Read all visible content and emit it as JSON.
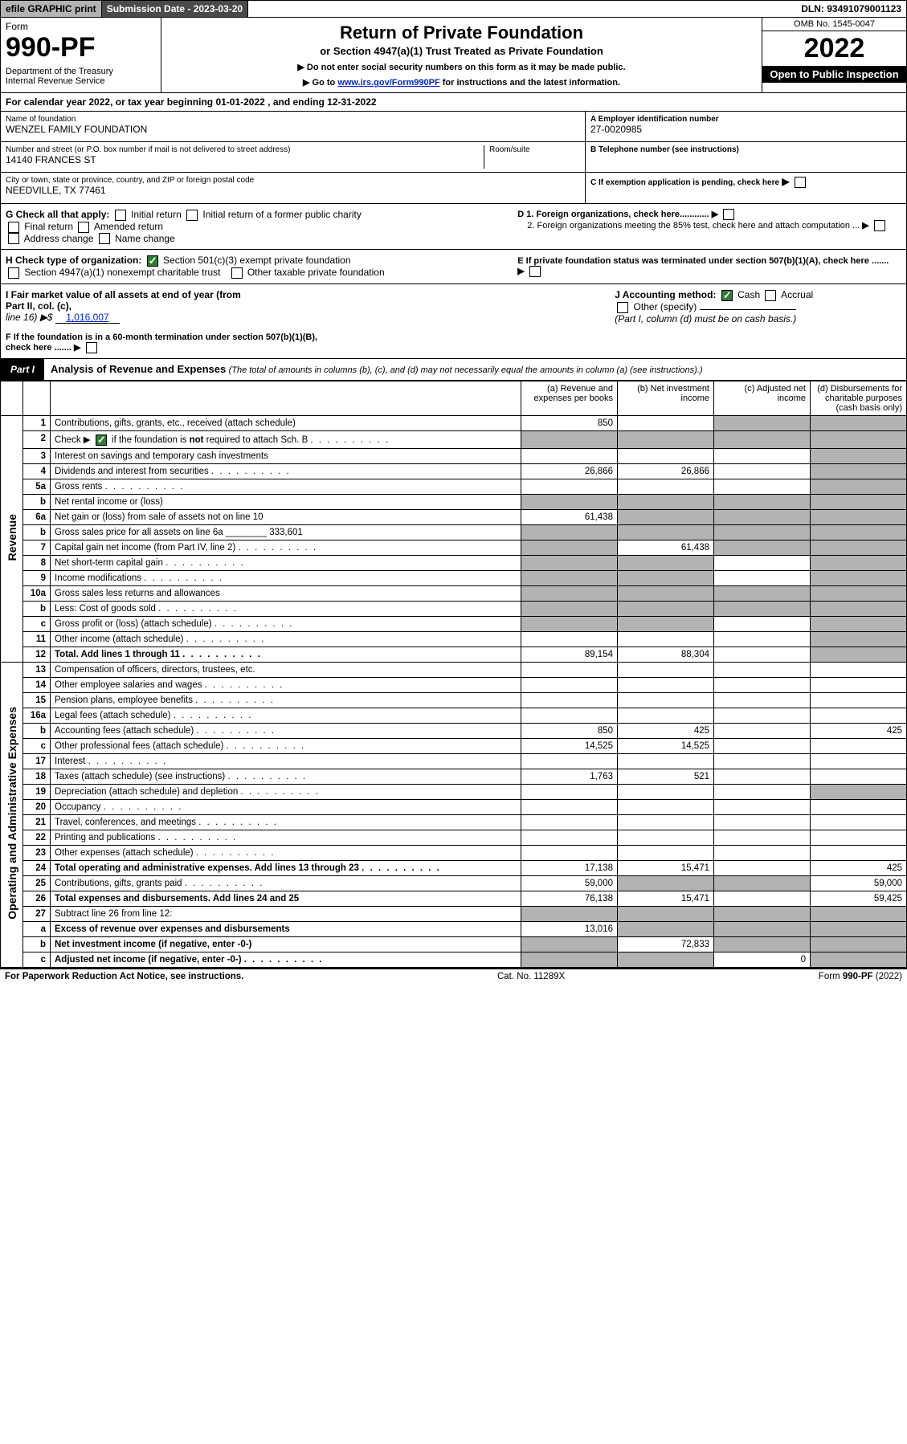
{
  "topbar": {
    "efile": "efile GRAPHIC print",
    "submission": "Submission Date - 2023-03-20",
    "dln": "DLN: 93491079001123"
  },
  "header": {
    "form_label": "Form",
    "form_no": "990-PF",
    "dept": "Department of the Treasury\nInternal Revenue Service",
    "title": "Return of Private Foundation",
    "subtitle": "or Section 4947(a)(1) Trust Treated as Private Foundation",
    "note1": "▶ Do not enter social security numbers on this form as it may be made public.",
    "note2_pre": "▶ Go to ",
    "note2_link": "www.irs.gov/Form990PF",
    "note2_post": " for instructions and the latest information.",
    "omb": "OMB No. 1545-0047",
    "year": "2022",
    "open": "Open to Public Inspection"
  },
  "calyear": "For calendar year 2022, or tax year beginning 01-01-2022           , and ending 12-31-2022",
  "info": {
    "name_lbl": "Name of foundation",
    "name": "WENZEL FAMILY FOUNDATION",
    "addr_lbl": "Number and street (or P.O. box number if mail is not delivered to street address)",
    "addr": "14140 FRANCES ST",
    "room_lbl": "Room/suite",
    "city_lbl": "City or town, state or province, country, and ZIP or foreign postal code",
    "city": "NEEDVILLE, TX  77461",
    "ein_lbl": "A Employer identification number",
    "ein": "27-0020985",
    "tel_lbl": "B Telephone number (see instructions)",
    "c": "C If exemption application is pending, check here",
    "d1": "D 1. Foreign organizations, check here............",
    "d2": "2. Foreign organizations meeting the 85% test, check here and attach computation ...",
    "e": "E If private foundation status was terminated under section 507(b)(1)(A), check here .......",
    "f": "F  If the foundation is in a 60-month termination under section 507(b)(1)(B), check here .......",
    "g_label": "G Check all that apply:",
    "g_opts": [
      "Initial return",
      "Initial return of a former public charity",
      "Final return",
      "Amended return",
      "Address change",
      "Name change"
    ],
    "h_label": "H Check type of organization:",
    "h1": "Section 501(c)(3) exempt private foundation",
    "h2": "Section 4947(a)(1) nonexempt charitable trust",
    "h3": "Other taxable private foundation",
    "i_label": "I Fair market value of all assets at end of year (from Part II, col. (c),",
    "i_line": "line 16) ▶$",
    "i_val": "1,016,007",
    "j_label": "J Accounting method:",
    "j1": "Cash",
    "j2": "Accrual",
    "j3": "Other (specify)",
    "j_note": "(Part I, column (d) must be on cash basis.)"
  },
  "part1": {
    "badge": "Part I",
    "title": "Analysis of Revenue and Expenses",
    "title_note": "(The total of amounts in columns (b), (c), and (d) may not necessarily equal the amounts in column (a) (see instructions).)",
    "col_a": "(a)   Revenue and expenses per books",
    "col_b": "(b)   Net investment income",
    "col_c": "(c)   Adjusted net income",
    "col_d": "(d)   Disbursements for charitable purposes (cash basis only)"
  },
  "sections": {
    "revenue": "Revenue",
    "opex": "Operating and Administrative Expenses"
  },
  "rows": [
    {
      "n": "1",
      "d": "Contributions, gifts, grants, etc., received (attach schedule)",
      "a": "850",
      "b": "",
      "c": "g",
      "dd": "g"
    },
    {
      "n": "2",
      "d": "Check ▶ ☑ if the foundation is not required to attach Sch. B",
      "dots": true,
      "a": "g",
      "b": "g",
      "c": "g",
      "dd": "g"
    },
    {
      "n": "3",
      "d": "Interest on savings and temporary cash investments",
      "a": "",
      "b": "",
      "c": "",
      "dd": "g"
    },
    {
      "n": "4",
      "d": "Dividends and interest from securities",
      "dots": true,
      "a": "26,866",
      "b": "26,866",
      "c": "",
      "dd": "g"
    },
    {
      "n": "5a",
      "d": "Gross rents",
      "dots": true,
      "a": "",
      "b": "",
      "c": "",
      "dd": "g"
    },
    {
      "n": "b",
      "d": "Net rental income or (loss)",
      "a": "g",
      "b": "g",
      "c": "g",
      "dd": "g"
    },
    {
      "n": "6a",
      "d": "Net gain or (loss) from sale of assets not on line 10",
      "a": "61,438",
      "b": "g",
      "c": "g",
      "dd": "g"
    },
    {
      "n": "b",
      "d": "Gross sales price for all assets on line 6a ________ 333,601",
      "a": "g",
      "b": "g",
      "c": "g",
      "dd": "g"
    },
    {
      "n": "7",
      "d": "Capital gain net income (from Part IV, line 2)",
      "dots": true,
      "a": "g",
      "b": "61,438",
      "c": "g",
      "dd": "g"
    },
    {
      "n": "8",
      "d": "Net short-term capital gain",
      "dots": true,
      "a": "g",
      "b": "g",
      "c": "",
      "dd": "g"
    },
    {
      "n": "9",
      "d": "Income modifications",
      "dots": true,
      "a": "g",
      "b": "g",
      "c": "",
      "dd": "g"
    },
    {
      "n": "10a",
      "d": "Gross sales less returns and allowances",
      "a": "g",
      "b": "g",
      "c": "g",
      "dd": "g"
    },
    {
      "n": "b",
      "d": "Less: Cost of goods sold",
      "dots": true,
      "a": "g",
      "b": "g",
      "c": "g",
      "dd": "g"
    },
    {
      "n": "c",
      "d": "Gross profit or (loss) (attach schedule)",
      "dots": true,
      "a": "g",
      "b": "g",
      "c": "",
      "dd": "g"
    },
    {
      "n": "11",
      "d": "Other income (attach schedule)",
      "dots": true,
      "a": "",
      "b": "",
      "c": "",
      "dd": "g"
    },
    {
      "n": "12",
      "d": "Total. Add lines 1 through 11",
      "dots": true,
      "bold": true,
      "a": "89,154",
      "b": "88,304",
      "c": "",
      "dd": "g"
    },
    {
      "n": "13",
      "d": "Compensation of officers, directors, trustees, etc.",
      "a": "",
      "b": "",
      "c": "",
      "dd": ""
    },
    {
      "n": "14",
      "d": "Other employee salaries and wages",
      "dots": true,
      "a": "",
      "b": "",
      "c": "",
      "dd": ""
    },
    {
      "n": "15",
      "d": "Pension plans, employee benefits",
      "dots": true,
      "a": "",
      "b": "",
      "c": "",
      "dd": ""
    },
    {
      "n": "16a",
      "d": "Legal fees (attach schedule)",
      "dots": true,
      "a": "",
      "b": "",
      "c": "",
      "dd": ""
    },
    {
      "n": "b",
      "d": "Accounting fees (attach schedule)",
      "dots": true,
      "a": "850",
      "b": "425",
      "c": "",
      "dd": "425"
    },
    {
      "n": "c",
      "d": "Other professional fees (attach schedule)",
      "dots": true,
      "a": "14,525",
      "b": "14,525",
      "c": "",
      "dd": ""
    },
    {
      "n": "17",
      "d": "Interest",
      "dots": true,
      "a": "",
      "b": "",
      "c": "",
      "dd": ""
    },
    {
      "n": "18",
      "d": "Taxes (attach schedule) (see instructions)",
      "dots": true,
      "a": "1,763",
      "b": "521",
      "c": "",
      "dd": ""
    },
    {
      "n": "19",
      "d": "Depreciation (attach schedule) and depletion",
      "dots": true,
      "a": "",
      "b": "",
      "c": "",
      "dd": "g"
    },
    {
      "n": "20",
      "d": "Occupancy",
      "dots": true,
      "a": "",
      "b": "",
      "c": "",
      "dd": ""
    },
    {
      "n": "21",
      "d": "Travel, conferences, and meetings",
      "dots": true,
      "a": "",
      "b": "",
      "c": "",
      "dd": ""
    },
    {
      "n": "22",
      "d": "Printing and publications",
      "dots": true,
      "a": "",
      "b": "",
      "c": "",
      "dd": ""
    },
    {
      "n": "23",
      "d": "Other expenses (attach schedule)",
      "dots": true,
      "a": "",
      "b": "",
      "c": "",
      "dd": ""
    },
    {
      "n": "24",
      "d": "Total operating and administrative expenses. Add lines 13 through 23",
      "dots": true,
      "bold": true,
      "a": "17,138",
      "b": "15,471",
      "c": "",
      "dd": "425"
    },
    {
      "n": "25",
      "d": "Contributions, gifts, grants paid",
      "dots": true,
      "a": "59,000",
      "b": "g",
      "c": "g",
      "dd": "59,000"
    },
    {
      "n": "26",
      "d": "Total expenses and disbursements. Add lines 24 and 25",
      "bold": true,
      "a": "76,138",
      "b": "15,471",
      "c": "",
      "dd": "59,425"
    },
    {
      "n": "27",
      "d": "Subtract line 26 from line 12:",
      "a": "g",
      "b": "g",
      "c": "g",
      "dd": "g"
    },
    {
      "n": "a",
      "d": "Excess of revenue over expenses and disbursements",
      "bold": true,
      "a": "13,016",
      "b": "g",
      "c": "g",
      "dd": "g"
    },
    {
      "n": "b",
      "d": "Net investment income (if negative, enter -0-)",
      "bold": true,
      "a": "g",
      "b": "72,833",
      "c": "g",
      "dd": "g"
    },
    {
      "n": "c",
      "d": "Adjusted net income (if negative, enter -0-)",
      "dots": true,
      "bold": true,
      "a": "g",
      "b": "g",
      "c": "0",
      "dd": "g"
    }
  ],
  "footer": {
    "left": "For Paperwork Reduction Act Notice, see instructions.",
    "mid": "Cat. No. 11289X",
    "right": "Form 990-PF (2022)"
  }
}
